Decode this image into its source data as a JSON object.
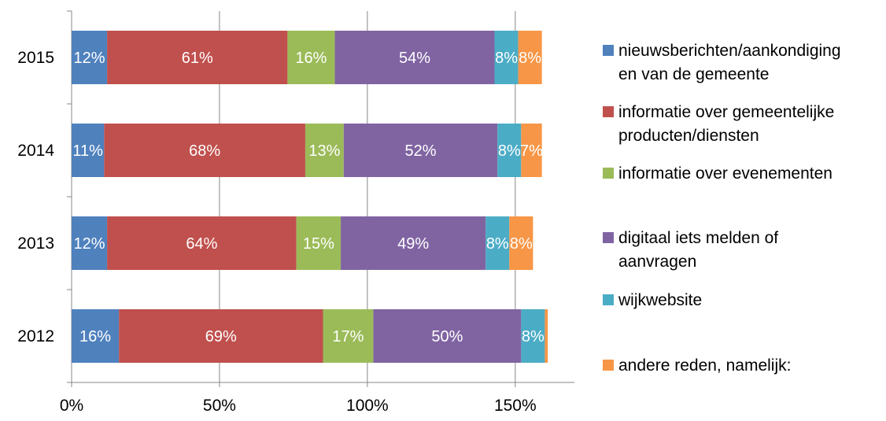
{
  "chart_data": {
    "type": "bar",
    "orientation": "horizontal",
    "stacked": true,
    "categories": [
      "2015",
      "2014",
      "2013",
      "2012"
    ],
    "series": [
      {
        "name": "nieuwsberichten/aankondigingen van de gemeente",
        "color": "#4F81BD",
        "values": [
          12,
          11,
          12,
          16
        ],
        "labels": [
          "12%",
          "11%",
          "12%",
          "16%"
        ]
      },
      {
        "name": "informatie over gemeentelijke producten/diensten",
        "color": "#C0504D",
        "values": [
          61,
          68,
          64,
          69
        ],
        "labels": [
          "61%",
          "68%",
          "64%",
          "69%"
        ]
      },
      {
        "name": "informatie over evenementen",
        "color": "#9BBB59",
        "values": [
          16,
          13,
          15,
          17
        ],
        "labels": [
          "16%",
          "13%",
          "15%",
          "17%"
        ]
      },
      {
        "name": "digitaal iets melden of aanvragen",
        "color": "#8064A2",
        "values": [
          54,
          52,
          49,
          50
        ],
        "labels": [
          "54%",
          "52%",
          "49%",
          "50%"
        ]
      },
      {
        "name": "wijkwebsite",
        "color": "#4BACC6",
        "values": [
          8,
          8,
          8,
          8
        ],
        "labels": [
          "8%",
          "8%",
          "8%",
          "8%"
        ]
      },
      {
        "name": "andere reden, namelijk:",
        "color": "#F79646",
        "values": [
          8,
          7,
          8,
          1
        ],
        "labels": [
          "8%",
          "7%",
          "8%",
          ""
        ]
      }
    ],
    "xlim": [
      0,
      170
    ],
    "xticks": [
      0,
      50,
      100,
      150
    ],
    "xtick_labels": [
      "0%",
      "50%",
      "100%",
      "150%"
    ],
    "grid": "vertical",
    "legend_position": "right"
  },
  "legend": [
    {
      "line1": "nieuwsberichten/aankondiging",
      "line2": "en van de gemeente",
      "color": "#4F81BD"
    },
    {
      "line1": "informatie over gemeentelijke",
      "line2": "producten/diensten",
      "color": "#C0504D"
    },
    {
      "line1": "informatie over evenementen",
      "line2": "",
      "color": "#9BBB59"
    },
    {
      "line1": "digitaal iets melden of",
      "line2": "aanvragen",
      "color": "#8064A2"
    },
    {
      "line1": "wijkwebsite",
      "line2": "",
      "color": "#4BACC6"
    },
    {
      "line1": "andere reden, namelijk:",
      "line2": "",
      "color": "#F79646"
    }
  ]
}
